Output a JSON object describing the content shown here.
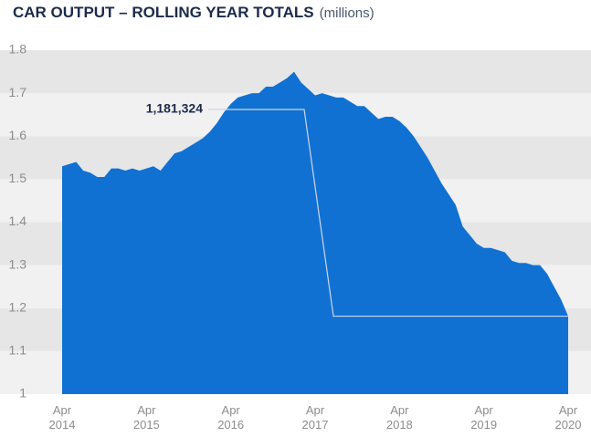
{
  "chart_data": {
    "type": "area",
    "title": "CAR OUTPUT – ROLLING YEAR TOTALS",
    "title_unit": "(millions)",
    "categories": [
      "Apr 2014",
      null,
      null,
      null,
      null,
      null,
      null,
      null,
      null,
      null,
      null,
      null,
      "Apr 2015",
      null,
      null,
      null,
      null,
      null,
      null,
      null,
      null,
      null,
      null,
      null,
      "Apr 2016",
      null,
      null,
      null,
      null,
      null,
      null,
      null,
      null,
      null,
      null,
      null,
      "Apr 2017",
      null,
      null,
      null,
      null,
      null,
      null,
      null,
      null,
      null,
      null,
      null,
      "Apr 2018",
      null,
      null,
      null,
      null,
      null,
      null,
      null,
      null,
      null,
      null,
      null,
      "Apr 2019",
      null,
      null,
      null,
      null,
      null,
      null,
      null,
      null,
      null,
      null,
      null,
      "Apr 2020"
    ],
    "values": [
      1.53,
      1.535,
      1.54,
      1.52,
      1.515,
      1.505,
      1.505,
      1.525,
      1.525,
      1.52,
      1.525,
      1.52,
      1.525,
      1.53,
      1.52,
      1.54,
      1.56,
      1.565,
      1.575,
      1.585,
      1.595,
      1.61,
      1.63,
      1.655,
      1.675,
      1.69,
      1.695,
      1.7,
      1.7,
      1.715,
      1.715,
      1.725,
      1.735,
      1.75,
      1.725,
      1.71,
      1.695,
      1.7,
      1.695,
      1.69,
      1.69,
      1.68,
      1.67,
      1.67,
      1.655,
      1.64,
      1.645,
      1.645,
      1.635,
      1.62,
      1.6,
      1.575,
      1.55,
      1.52,
      1.49,
      1.465,
      1.44,
      1.39,
      1.37,
      1.35,
      1.34,
      1.34,
      1.335,
      1.33,
      1.31,
      1.305,
      1.305,
      1.3,
      1.3,
      1.28,
      1.25,
      1.22,
      1.181324
    ],
    "color": "#1171d3",
    "ylim": [
      1,
      1.8
    ],
    "yticks": [
      1,
      1.1,
      1.2,
      1.3,
      1.4,
      1.5,
      1.6,
      1.7,
      1.8
    ],
    "grid": "bands",
    "annotation": {
      "label": "1,181,324",
      "value": 1.181324
    }
  }
}
